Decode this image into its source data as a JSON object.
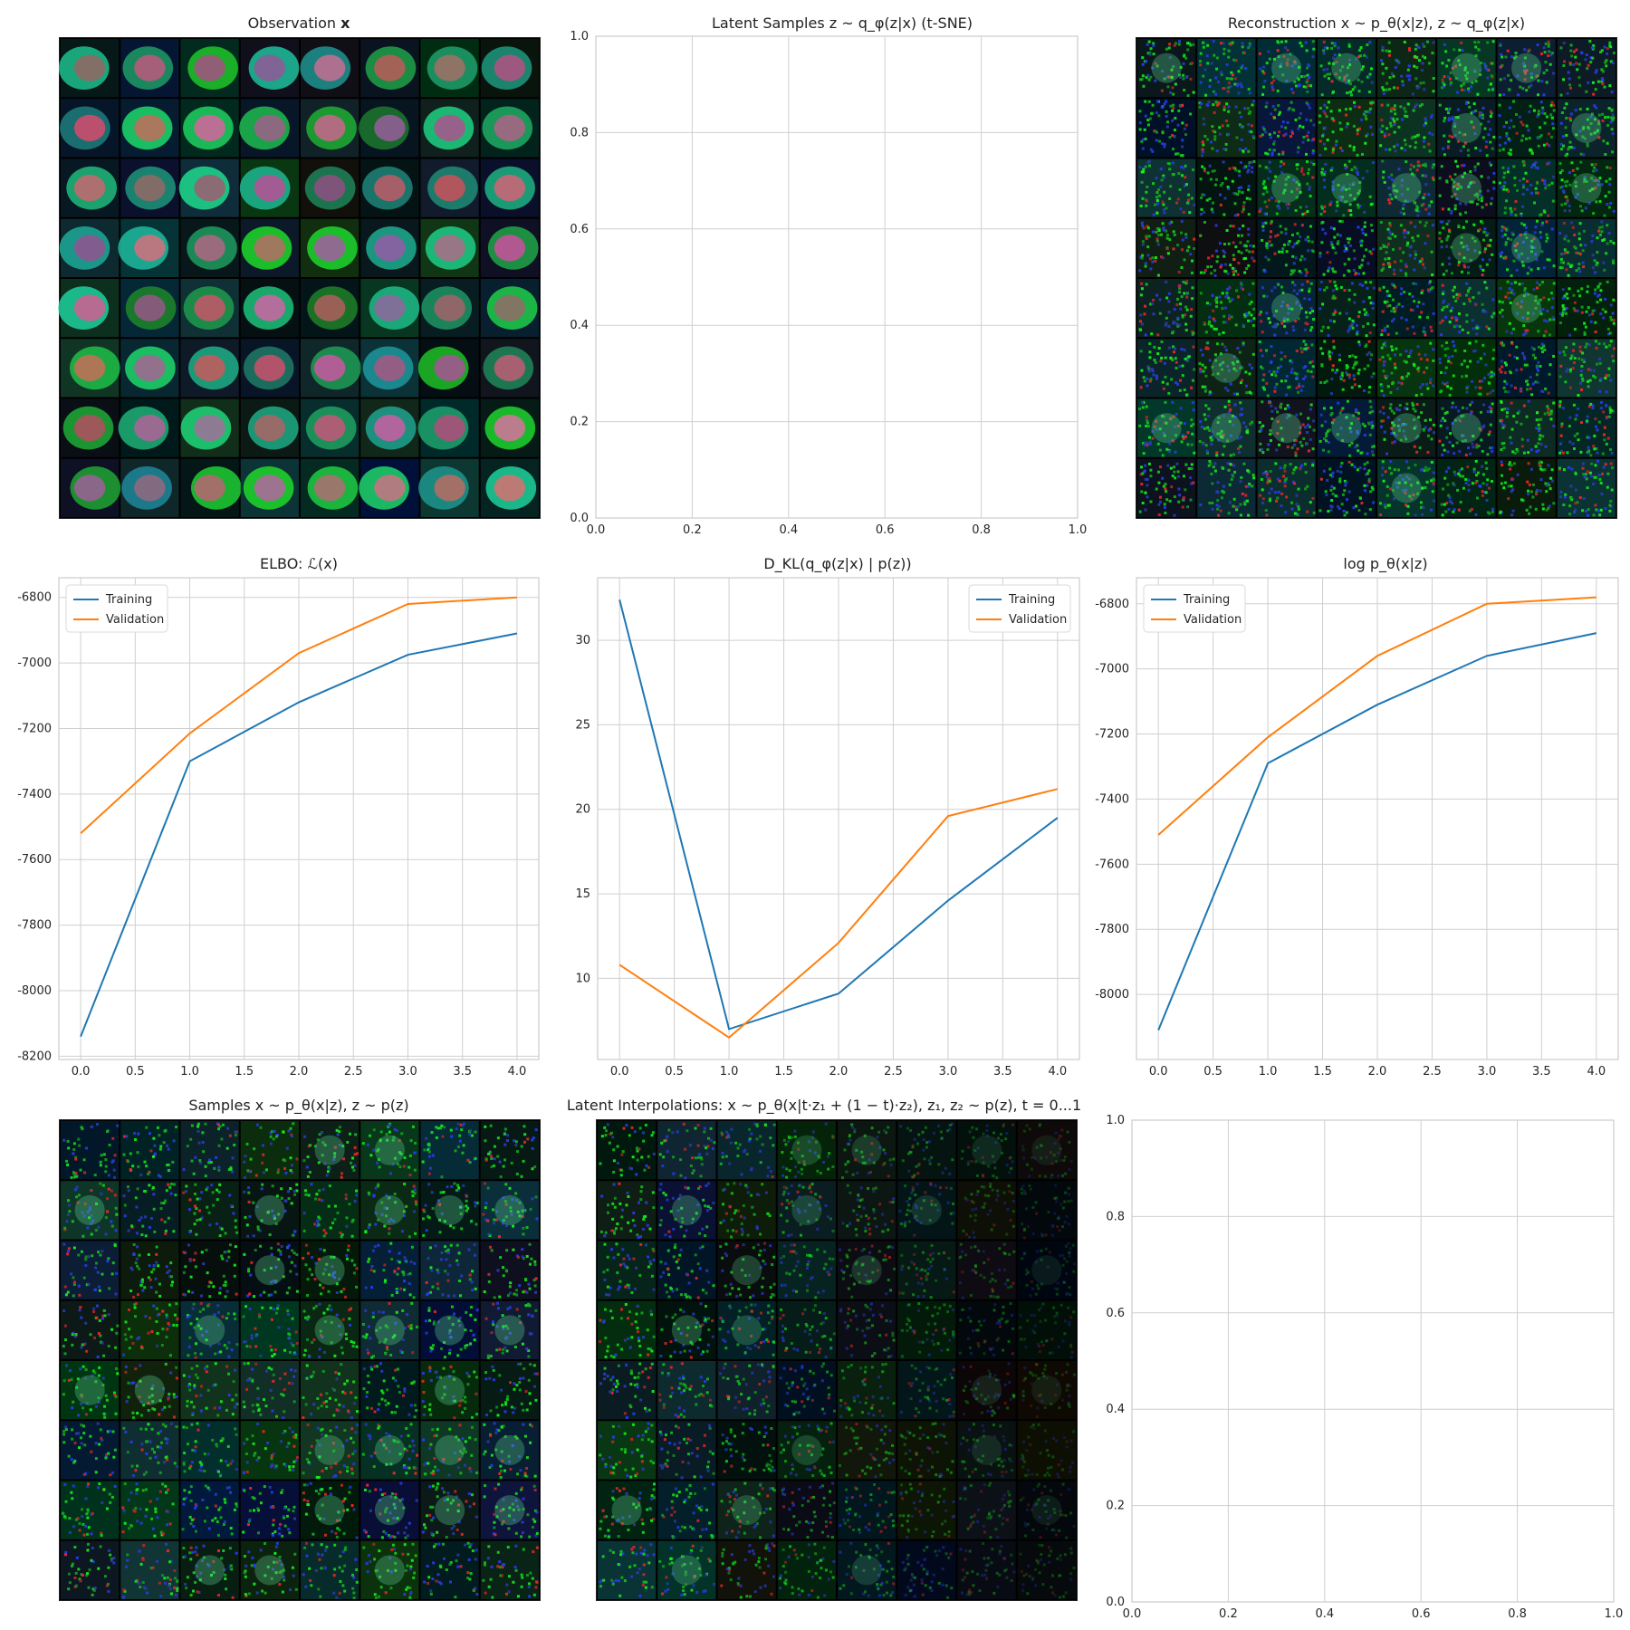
{
  "titles": {
    "observation": "Observation",
    "observation_sym": "x",
    "latent": "Latent Samples z ~ q_φ(z|x) (t-SNE)",
    "reconstruction": "Reconstruction x ~ p_θ(x|z), z ~ q_φ(z|x)",
    "elbo": "ELBO: ℒ(x)",
    "kl": "D_KL(q_φ(z|x) | p(z))",
    "loglik": "log p_θ(x|z)",
    "samples": "Samples x ~ p_θ(x|z), z ~ p(z)",
    "interp": "Latent Interpolations: x ~ p_θ(x|t·z₁ + (1 − t)·z₂), z₁, z₂ ~ p(z), t = 0...1"
  },
  "colors": {
    "training": "#1f77b4",
    "validation": "#ff7f0e",
    "grid": "#cfcfcf"
  },
  "chart_data": [
    {
      "id": "latent",
      "type": "scatter",
      "title": "Latent Samples z ~ q_φ(z|x) (t-SNE)",
      "xlim": [
        0,
        1
      ],
      "ylim": [
        0,
        1
      ],
      "xticks": [
        "0.0",
        "0.2",
        "0.4",
        "0.6",
        "0.8",
        "1.0"
      ],
      "yticks": [
        "0.0",
        "0.2",
        "0.4",
        "0.6",
        "0.8",
        "1.0"
      ],
      "series": [],
      "grid": true
    },
    {
      "id": "elbo",
      "type": "line",
      "title": "ELBO: ℒ(x)",
      "x": [
        0,
        1,
        2,
        3,
        4
      ],
      "xlim": [
        -0.2,
        4.2
      ],
      "ylim": [
        -8210,
        -6740
      ],
      "xticks": [
        "0.0",
        "0.5",
        "1.0",
        "1.5",
        "2.0",
        "2.5",
        "3.0",
        "3.5",
        "4.0"
      ],
      "yticks": [
        "-6800",
        "-7000",
        "-7200",
        "-7400",
        "-7600",
        "-7800",
        "-8000",
        "-8200"
      ],
      "series": [
        {
          "name": "Training",
          "values": [
            -8140,
            -7300,
            -7120,
            -6975,
            -6910
          ]
        },
        {
          "name": "Validation",
          "values": [
            -7520,
            -7215,
            -6970,
            -6820,
            -6800
          ]
        }
      ],
      "legend": "top-left",
      "grid": true
    },
    {
      "id": "kl",
      "type": "line",
      "title": "D_KL(q_φ(z|x) | p(z))",
      "x": [
        0,
        1,
        2,
        3,
        4
      ],
      "xlim": [
        -0.2,
        4.2
      ],
      "ylim": [
        5.2,
        33.7
      ],
      "xticks": [
        "0.0",
        "0.5",
        "1.0",
        "1.5",
        "2.0",
        "2.5",
        "3.0",
        "3.5",
        "4.0"
      ],
      "yticks": [
        "30",
        "25",
        "20",
        "15",
        "10"
      ],
      "series": [
        {
          "name": "Training",
          "values": [
            32.4,
            7.0,
            9.1,
            14.6,
            19.5
          ]
        },
        {
          "name": "Validation",
          "values": [
            10.8,
            6.5,
            12.1,
            19.6,
            21.2
          ]
        }
      ],
      "legend": "top-right",
      "grid": true
    },
    {
      "id": "loglik",
      "type": "line",
      "title": "log p_θ(x|z)",
      "x": [
        0,
        1,
        2,
        3,
        4
      ],
      "xlim": [
        -0.2,
        4.2
      ],
      "ylim": [
        -8200,
        -6720
      ],
      "xticks": [
        "0.0",
        "0.5",
        "1.0",
        "1.5",
        "2.0",
        "2.5",
        "3.0",
        "3.5",
        "4.0"
      ],
      "yticks": [
        "-6800",
        "-7000",
        "-7200",
        "-7400",
        "-7600",
        "-7800",
        "-8000"
      ],
      "series": [
        {
          "name": "Training",
          "values": [
            -8110,
            -7290,
            -7110,
            -6960,
            -6890
          ]
        },
        {
          "name": "Validation",
          "values": [
            -7510,
            -7210,
            -6960,
            -6800,
            -6780
          ]
        }
      ],
      "legend": "top-left",
      "grid": true
    },
    {
      "id": "empty",
      "type": "scatter",
      "title": "",
      "xlim": [
        0,
        1
      ],
      "ylim": [
        0,
        1
      ],
      "xticks": [
        "0.0",
        "0.2",
        "0.4",
        "0.6",
        "0.8",
        "1.0"
      ],
      "yticks": [
        "0.0",
        "0.2",
        "0.4",
        "0.6",
        "0.8",
        "1.0"
      ],
      "series": [],
      "grid": true
    }
  ]
}
